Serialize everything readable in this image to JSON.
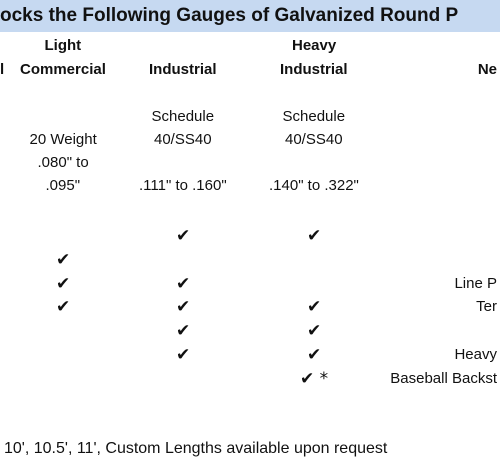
{
  "title": "ocks the Following Gauges of Galvanized Round P",
  "header_rows": [
    [
      null,
      "Light",
      null,
      "Heavy",
      null
    ],
    [
      "l",
      "Commercial",
      "Industrial",
      "Industrial",
      "Ne"
    ]
  ],
  "spec_rows": [
    [
      null,
      null,
      "Schedule",
      "Schedule",
      null
    ],
    [
      null,
      "20 Weight",
      "40/SS40",
      "40/SS40",
      null
    ],
    [
      null,
      ".080\" to",
      null,
      null,
      null
    ],
    [
      null,
      ".095\"",
      ".111\" to .160\"",
      ".140\" to .322\"",
      null
    ]
  ],
  "check_rows": [
    [
      null,
      null,
      "✔",
      "✔",
      null
    ],
    [
      null,
      "✔",
      null,
      null,
      null
    ],
    [
      null,
      "✔",
      "✔",
      null,
      "Line P"
    ],
    [
      null,
      "✔",
      "✔",
      "✔",
      "Ter"
    ],
    [
      null,
      null,
      "✔",
      "✔",
      null
    ],
    [
      null,
      null,
      "✔",
      "✔",
      "Heavy"
    ],
    [
      null,
      null,
      null,
      "✔ *",
      "Baseball Backst"
    ]
  ],
  "footnote": "10', 10.5', 11', Custom Lengths available upon request"
}
